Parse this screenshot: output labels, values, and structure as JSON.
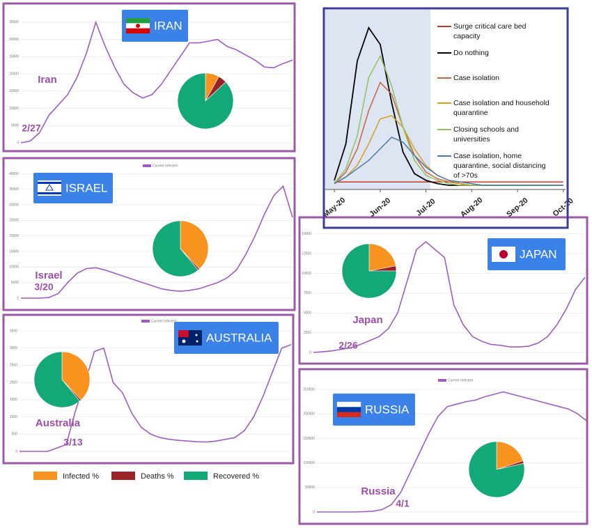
{
  "chart_data": [
    {
      "type": "line",
      "badge": "IRAN",
      "label": "Iran",
      "start": "2/27",
      "ylim": [
        0,
        37000
      ],
      "yticks": [
        0,
        5000,
        10000,
        15000,
        20000,
        25000,
        30000,
        35000
      ],
      "grid": true,
      "series": [
        {
          "color": "#a05cc0",
          "values": [
            0,
            500,
            3000,
            8000,
            11000,
            14000,
            19000,
            26000,
            35000,
            28000,
            22000,
            17000,
            14500,
            13000,
            14000,
            17000,
            21000,
            25000,
            29000,
            29000,
            29500,
            30000,
            28000,
            27000,
            25500,
            24000,
            22000,
            21800,
            23000,
            24000
          ]
        }
      ],
      "pie": {
        "values": [
          8,
          5,
          87
        ]
      }
    },
    {
      "type": "line",
      "badge": "ISRAEL",
      "label": "Israel",
      "start": "3/20",
      "ylim": [
        0,
        41000
      ],
      "yticks": [
        0,
        5000,
        10000,
        15000,
        20000,
        25000,
        30000,
        35000,
        40000
      ],
      "grid": true,
      "series": [
        {
          "name": "Current Infected",
          "color": "#a05cc0",
          "values": [
            0,
            0,
            0,
            200,
            1500,
            5000,
            8000,
            9500,
            9800,
            9000,
            8000,
            7000,
            6000,
            5000,
            4000,
            3000,
            2500,
            2200,
            2500,
            3000,
            4000,
            5000,
            6500,
            9000,
            14000,
            20000,
            27000,
            33000,
            36000,
            26000
          ]
        }
      ],
      "pie": {
        "values": [
          38,
          1,
          61
        ]
      }
    },
    {
      "type": "line",
      "badge": "AUSTRALIA",
      "label": "Australia",
      "start": "3/13",
      "ylim": [
        0,
        3600
      ],
      "yticks": [
        0,
        500,
        1000,
        1500,
        2000,
        2500,
        3000,
        3500
      ],
      "grid": true,
      "series": [
        {
          "name": "Current Infected",
          "color": "#a05cc0",
          "values": [
            0,
            0,
            0,
            0,
            100,
            200,
            1200,
            2000,
            2900,
            3000,
            2000,
            1700,
            1100,
            700,
            500,
            400,
            350,
            320,
            300,
            280,
            270,
            300,
            350,
            400,
            600,
            1000,
            1600,
            2300,
            3000,
            3100
          ]
        }
      ],
      "pie": {
        "values": [
          38,
          1,
          61
        ]
      }
    },
    {
      "type": "line",
      "badge": "JAPAN",
      "label": "Japan",
      "start": "2/26",
      "ylim": [
        0,
        15500
      ],
      "yticks": [
        0,
        2500,
        5000,
        7500,
        10000,
        12500,
        15000
      ],
      "grid": true,
      "series": [
        {
          "color": "#a05cc0",
          "values": [
            0,
            100,
            200,
            400,
            600,
            1000,
            1500,
            2000,
            3000,
            5000,
            9000,
            13000,
            14000,
            13000,
            12000,
            6000,
            3500,
            2000,
            1400,
            1000,
            900,
            700,
            700,
            800,
            1200,
            2000,
            3500,
            5500,
            8000,
            9500
          ]
        }
      ],
      "pie": {
        "values": [
          22,
          3,
          75
        ]
      }
    },
    {
      "type": "line",
      "badge": "RUSSIA",
      "label": "Russia",
      "start": "4/1",
      "ylim": [
        0,
        260000
      ],
      "yticks": [
        0,
        50000,
        100000,
        150000,
        200000,
        250000
      ],
      "grid": true,
      "series": [
        {
          "name": "Current Infected",
          "color": "#a05cc0",
          "values": [
            0,
            0,
            0,
            0,
            0,
            500,
            1500,
            5000,
            15000,
            40000,
            80000,
            120000,
            160000,
            195000,
            215000,
            220000,
            225000,
            228000,
            235000,
            240000,
            245000,
            240000,
            235000,
            230000,
            225000,
            220000,
            215000,
            210000,
            200000,
            185000
          ]
        }
      ],
      "pie": {
        "values": [
          20,
          1.5,
          78.5
        ]
      }
    },
    {
      "type": "model",
      "x": [
        0,
        0.25,
        0.5,
        0.75,
        1,
        1.25,
        1.5,
        1.75,
        2,
        2.25,
        2.5,
        2.75,
        3,
        3.25,
        3.5,
        3.75,
        4,
        4.25,
        4.5,
        4.75,
        5
      ],
      "xlim": [
        -0.2,
        5.05
      ],
      "ylim": [
        0,
        100
      ],
      "xticks": [
        {
          "value": 0,
          "label": "May-20"
        },
        {
          "value": 1,
          "label": "Jun-20"
        },
        {
          "value": 2,
          "label": "Jul-20"
        },
        {
          "value": 3,
          "label": "Aug-20"
        },
        {
          "value": 4,
          "label": "Sep-20"
        },
        {
          "value": 5,
          "label": "Oct-20"
        }
      ],
      "shaded_xrange": [
        -0.2,
        2.1
      ],
      "series": [
        {
          "name": "Surge critical care bed capacity",
          "color": "#c0392b",
          "values": [
            2,
            2,
            2,
            2,
            2,
            2,
            2,
            2,
            2,
            2,
            2,
            2,
            2,
            2,
            2,
            2,
            2,
            2,
            2,
            2,
            2
          ]
        },
        {
          "name": "Do nothing",
          "color": "#000000",
          "values": [
            3,
            25,
            75,
            95,
            85,
            50,
            20,
            7,
            3,
            1,
            0,
            0,
            0,
            0,
            0,
            0,
            0,
            0,
            0,
            0,
            0
          ]
        },
        {
          "name": "Case isolation",
          "color": "#c8643c",
          "values": [
            1,
            8,
            22,
            45,
            62,
            55,
            35,
            18,
            8,
            4,
            2,
            1,
            0,
            0,
            0,
            0,
            0,
            0,
            0,
            0,
            0
          ]
        },
        {
          "name": "Case isolation and household quarantine",
          "color": "#d4a020",
          "values": [
            1,
            5,
            12,
            25,
            40,
            42,
            35,
            22,
            12,
            6,
            3,
            1,
            0,
            0,
            0,
            0,
            0,
            0,
            0,
            0,
            0
          ]
        },
        {
          "name": "Closing schools and universities",
          "color": "#90c060",
          "values": [
            1,
            10,
            30,
            65,
            78,
            60,
            35,
            15,
            6,
            3,
            1,
            0,
            0,
            0,
            0,
            0,
            0,
            0,
            0,
            0,
            0
          ]
        },
        {
          "name": "Case isolation, home quarantine, social distancing of >70s",
          "color": "#4a78a8",
          "values": [
            1,
            5,
            10,
            15,
            22,
            29,
            26,
            18,
            11,
            6,
            3,
            2,
            1,
            0,
            0,
            0,
            0,
            0,
            0,
            0,
            0
          ]
        }
      ]
    }
  ],
  "pie_legend": {
    "labels": [
      "Infected %",
      "Deaths %",
      "Recovered %"
    ],
    "colors": [
      "#f7931e",
      "#9b2226",
      "#13a878"
    ]
  }
}
